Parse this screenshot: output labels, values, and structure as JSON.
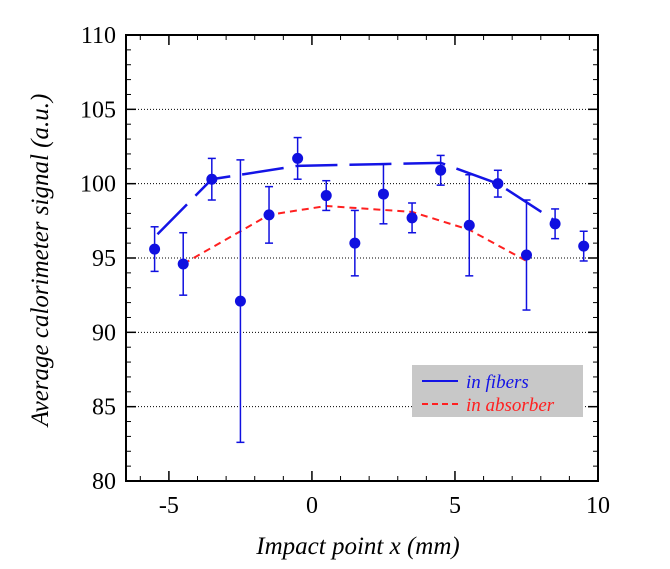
{
  "chart_data": {
    "type": "scatter",
    "title": "",
    "xlabel": "Impact point x (mm)",
    "ylabel": "Average calorimeter signal (a.u.)",
    "xlim": [
      -6.5,
      10
    ],
    "ylim": [
      80,
      110
    ],
    "xticks": [
      -5,
      0,
      5,
      10
    ],
    "yticks": [
      80,
      85,
      90,
      95,
      100,
      105,
      110
    ],
    "grid": "horizontal dotted",
    "legend_position": "bottom-right",
    "points": {
      "x": [
        -5.5,
        -4.5,
        -3.5,
        -2.5,
        -1.5,
        -0.5,
        0.5,
        1.5,
        2.5,
        3.5,
        4.5,
        5.5,
        6.5,
        7.5,
        8.5,
        9.5
      ],
      "y": [
        95.6,
        94.6,
        100.3,
        92.1,
        97.9,
        101.7,
        99.2,
        96.0,
        99.3,
        97.7,
        100.9,
        97.2,
        100.0,
        95.2,
        97.3,
        95.8
      ],
      "yerr": [
        1.5,
        2.1,
        1.4,
        9.5,
        1.9,
        1.4,
        1.0,
        2.2,
        2.0,
        1.0,
        1.0,
        3.4,
        0.9,
        3.7,
        1.0,
        1.0
      ]
    },
    "series": [
      {
        "name": "in fibers",
        "style": "solid",
        "color": "#1414e6",
        "x": [
          -5.4,
          -3.5,
          -0.5,
          4.5,
          6.5,
          8.5
        ],
        "y": [
          96.6,
          100.3,
          101.2,
          101.4,
          100.0,
          97.5
        ]
      },
      {
        "name": "in absorber",
        "style": "dashed",
        "color": "#ff2020",
        "x": [
          -4.5,
          -1.5,
          0.5,
          3.5,
          5.5,
          7.5
        ],
        "y": [
          94.6,
          97.9,
          98.5,
          98.1,
          96.9,
          94.8
        ]
      }
    ]
  },
  "colors": {
    "points": "#1010e0",
    "legend_bg": "#c8c8c8"
  }
}
